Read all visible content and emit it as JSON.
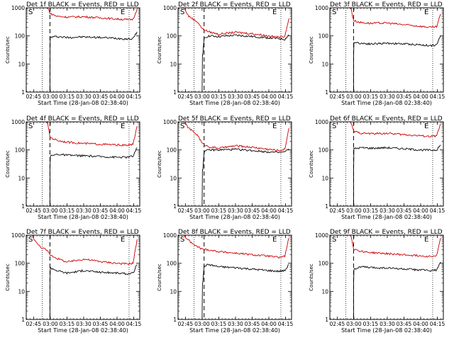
{
  "chart_data": [
    {
      "type": "line",
      "title": "Det 1f BLACK = Events, RED = LLD",
      "series": [
        {
          "name": "Events",
          "color": "#000000",
          "points": [
            [
              2.94,
              0
            ],
            [
              2.995,
              0
            ],
            [
              2.996,
              25
            ],
            [
              3.0,
              90
            ],
            [
              3.1,
              95
            ],
            [
              3.25,
              88
            ],
            [
              3.5,
              92
            ],
            [
              3.75,
              88
            ],
            [
              4.0,
              82
            ],
            [
              4.15,
              78
            ],
            [
              4.24,
              80
            ],
            [
              4.3,
              140
            ]
          ]
        },
        {
          "name": "LLD",
          "color": "#cc0000",
          "points": [
            [
              2.94,
              1000
            ],
            [
              2.96,
              1000
            ],
            [
              2.98,
              800
            ],
            [
              3.0,
              620
            ],
            [
              3.1,
              500
            ],
            [
              3.25,
              470
            ],
            [
              3.5,
              480
            ],
            [
              3.75,
              440
            ],
            [
              4.0,
              400
            ],
            [
              4.15,
              380
            ],
            [
              4.24,
              390
            ],
            [
              4.3,
              900
            ]
          ]
        }
      ]
    },
    {
      "type": "line",
      "title": "Det 2f BLACK = Events, RED = LLD",
      "series": [
        {
          "name": "Events",
          "color": "#000000",
          "points": [
            [
              2.94,
              0
            ],
            [
              3.0,
              0
            ],
            [
              3.01,
              20
            ],
            [
              3.03,
              85
            ],
            [
              3.1,
              100
            ],
            [
              3.25,
              95
            ],
            [
              3.5,
              105
            ],
            [
              3.75,
              95
            ],
            [
              4.0,
              85
            ],
            [
              4.15,
              80
            ],
            [
              4.24,
              75
            ],
            [
              4.3,
              110
            ]
          ]
        },
        {
          "name": "LLD",
          "color": "#cc0000",
          "points": [
            [
              2.72,
              1000
            ],
            [
              2.75,
              800
            ],
            [
              2.8,
              500
            ],
            [
              2.88,
              380
            ],
            [
              2.94,
              300
            ],
            [
              3.0,
              180
            ],
            [
              3.1,
              140
            ],
            [
              3.25,
              115
            ],
            [
              3.5,
              135
            ],
            [
              3.75,
              120
            ],
            [
              4.0,
              100
            ],
            [
              4.15,
              90
            ],
            [
              4.24,
              100
            ],
            [
              4.3,
              420
            ]
          ]
        }
      ]
    },
    {
      "type": "line",
      "title": "Det 3f BLACK = Events, RED = LLD",
      "series": [
        {
          "name": "Events",
          "color": "#000000",
          "points": [
            [
              2.94,
              0
            ],
            [
              2.995,
              0
            ],
            [
              2.996,
              20
            ],
            [
              3.0,
              60
            ],
            [
              3.1,
              55
            ],
            [
              3.25,
              52
            ],
            [
              3.5,
              55
            ],
            [
              3.75,
              52
            ],
            [
              4.0,
              48
            ],
            [
              4.15,
              45
            ],
            [
              4.24,
              48
            ],
            [
              4.3,
              100
            ]
          ]
        },
        {
          "name": "LLD",
          "color": "#cc0000",
          "points": [
            [
              2.94,
              1000
            ],
            [
              2.96,
              900
            ],
            [
              2.98,
              500
            ],
            [
              3.0,
              350
            ],
            [
              3.1,
              300
            ],
            [
              3.25,
              280
            ],
            [
              3.5,
              290
            ],
            [
              3.75,
              250
            ],
            [
              4.0,
              220
            ],
            [
              4.15,
              200
            ],
            [
              4.24,
              210
            ],
            [
              4.3,
              600
            ]
          ]
        }
      ]
    },
    {
      "type": "line",
      "title": "Det 4f BLACK = Events, RED = LLD",
      "series": [
        {
          "name": "Events",
          "color": "#000000",
          "points": [
            [
              2.94,
              0
            ],
            [
              2.995,
              0
            ],
            [
              2.996,
              20
            ],
            [
              3.0,
              60
            ],
            [
              3.1,
              70
            ],
            [
              3.25,
              65
            ],
            [
              3.5,
              62
            ],
            [
              3.75,
              58
            ],
            [
              4.0,
              55
            ],
            [
              4.15,
              55
            ],
            [
              4.24,
              60
            ],
            [
              4.3,
              120
            ]
          ]
        },
        {
          "name": "LLD",
          "color": "#cc0000",
          "points": [
            [
              2.94,
              1000
            ],
            [
              2.96,
              900
            ],
            [
              2.98,
              450
            ],
            [
              3.0,
              280
            ],
            [
              3.1,
              220
            ],
            [
              3.25,
              190
            ],
            [
              3.5,
              170
            ],
            [
              3.75,
              160
            ],
            [
              4.0,
              150
            ],
            [
              4.15,
              145
            ],
            [
              4.24,
              160
            ],
            [
              4.3,
              700
            ]
          ]
        }
      ]
    },
    {
      "type": "line",
      "title": "Det 5f BLACK = Events, RED = LLD",
      "series": [
        {
          "name": "Events",
          "color": "#000000",
          "points": [
            [
              2.94,
              0
            ],
            [
              3.0,
              0
            ],
            [
              3.01,
              20
            ],
            [
              3.03,
              85
            ],
            [
              3.1,
              100
            ],
            [
              3.25,
              100
            ],
            [
              3.5,
              105
            ],
            [
              3.75,
              95
            ],
            [
              4.0,
              85
            ],
            [
              4.15,
              80
            ],
            [
              4.24,
              85
            ],
            [
              4.3,
              110
            ]
          ]
        },
        {
          "name": "LLD",
          "color": "#cc0000",
          "points": [
            [
              2.72,
              1000
            ],
            [
              2.75,
              850
            ],
            [
              2.8,
              600
            ],
            [
              2.88,
              420
            ],
            [
              2.94,
              320
            ],
            [
              3.0,
              170
            ],
            [
              3.1,
              130
            ],
            [
              3.25,
              115
            ],
            [
              3.5,
              140
            ],
            [
              3.75,
              125
            ],
            [
              4.0,
              105
            ],
            [
              4.15,
              95
            ],
            [
              4.24,
              105
            ],
            [
              4.3,
              600
            ]
          ]
        }
      ]
    },
    {
      "type": "line",
      "title": "Det 6f BLACK = Events, RED = LLD",
      "series": [
        {
          "name": "Events",
          "color": "#000000",
          "points": [
            [
              2.94,
              0
            ],
            [
              2.995,
              0
            ],
            [
              2.996,
              20
            ],
            [
              3.0,
              110
            ],
            [
              3.1,
              120
            ],
            [
              3.25,
              115
            ],
            [
              3.5,
              120
            ],
            [
              3.75,
              110
            ],
            [
              4.0,
              100
            ],
            [
              4.15,
              98
            ],
            [
              4.24,
              100
            ],
            [
              4.3,
              150
            ]
          ]
        },
        {
          "name": "LLD",
          "color": "#cc0000",
          "points": [
            [
              2.94,
              1000
            ],
            [
              2.96,
              900
            ],
            [
              2.98,
              600
            ],
            [
              3.0,
              450
            ],
            [
              3.1,
              400
            ],
            [
              3.25,
              380
            ],
            [
              3.5,
              390
            ],
            [
              3.75,
              350
            ],
            [
              4.0,
              320
            ],
            [
              4.15,
              300
            ],
            [
              4.24,
              320
            ],
            [
              4.3,
              850
            ]
          ]
        }
      ]
    },
    {
      "type": "line",
      "title": "Det 7f BLACK = Events, RED = LLD",
      "series": [
        {
          "name": "Events",
          "color": "#000000",
          "points": [
            [
              2.94,
              0
            ],
            [
              2.995,
              0
            ],
            [
              2.996,
              20
            ],
            [
              3.0,
              70
            ],
            [
              3.1,
              55
            ],
            [
              3.25,
              45
            ],
            [
              3.5,
              55
            ],
            [
              3.75,
              48
            ],
            [
              4.0,
              45
            ],
            [
              4.15,
              42
            ],
            [
              4.24,
              45
            ],
            [
              4.3,
              90
            ]
          ]
        },
        {
          "name": "LLD",
          "color": "#cc0000",
          "points": [
            [
              2.72,
              1000
            ],
            [
              2.75,
              800
            ],
            [
              2.8,
              500
            ],
            [
              2.88,
              350
            ],
            [
              2.94,
              300
            ],
            [
              3.0,
              200
            ],
            [
              3.1,
              150
            ],
            [
              3.25,
              110
            ],
            [
              3.5,
              140
            ],
            [
              3.75,
              115
            ],
            [
              4.0,
              100
            ],
            [
              4.15,
              95
            ],
            [
              4.24,
              100
            ],
            [
              4.3,
              700
            ]
          ]
        }
      ]
    },
    {
      "type": "line",
      "title": "Det 8f BLACK = Events, RED = LLD",
      "series": [
        {
          "name": "Events",
          "color": "#000000",
          "points": [
            [
              2.94,
              0
            ],
            [
              3.0,
              0
            ],
            [
              3.01,
              20
            ],
            [
              3.03,
              80
            ],
            [
              3.1,
              90
            ],
            [
              3.25,
              75
            ],
            [
              3.5,
              70
            ],
            [
              3.75,
              62
            ],
            [
              4.0,
              55
            ],
            [
              4.15,
              52
            ],
            [
              4.24,
              55
            ],
            [
              4.3,
              90
            ]
          ]
        },
        {
          "name": "LLD",
          "color": "#cc0000",
          "points": [
            [
              2.72,
              1000
            ],
            [
              2.75,
              850
            ],
            [
              2.8,
              650
            ],
            [
              2.88,
              450
            ],
            [
              2.94,
              380
            ],
            [
              3.0,
              320
            ],
            [
              3.1,
              300
            ],
            [
              3.25,
              260
            ],
            [
              3.5,
              230
            ],
            [
              3.75,
              200
            ],
            [
              4.0,
              180
            ],
            [
              4.15,
              160
            ],
            [
              4.24,
              180
            ],
            [
              4.3,
              800
            ]
          ]
        }
      ]
    },
    {
      "type": "line",
      "title": "Det 9f BLACK = Events, RED = LLD",
      "series": [
        {
          "name": "Events",
          "color": "#000000",
          "points": [
            [
              2.94,
              0
            ],
            [
              2.995,
              0
            ],
            [
              2.996,
              20
            ],
            [
              3.0,
              60
            ],
            [
              3.1,
              75
            ],
            [
              3.25,
              70
            ],
            [
              3.5,
              68
            ],
            [
              3.75,
              62
            ],
            [
              4.0,
              58
            ],
            [
              4.15,
              55
            ],
            [
              4.24,
              58
            ],
            [
              4.3,
              110
            ]
          ]
        },
        {
          "name": "LLD",
          "color": "#cc0000",
          "points": [
            [
              2.94,
              1000
            ],
            [
              2.96,
              900
            ],
            [
              2.98,
              500
            ],
            [
              3.0,
              320
            ],
            [
              3.1,
              270
            ],
            [
              3.25,
              240
            ],
            [
              3.5,
              220
            ],
            [
              3.75,
              200
            ],
            [
              4.0,
              185
            ],
            [
              4.15,
              175
            ],
            [
              4.24,
              185
            ],
            [
              4.3,
              800
            ]
          ]
        }
      ]
    }
  ],
  "shared": {
    "xlabel": "Start Time (28-Jan-08 02:38:40)",
    "ylabel": "Counts/sec",
    "xticks": [
      {
        "v": 2.75,
        "label": "02:45"
      },
      {
        "v": 3.0,
        "label": "03:00"
      },
      {
        "v": 3.25,
        "label": "03:15"
      },
      {
        "v": 3.5,
        "label": "03:30"
      },
      {
        "v": 3.75,
        "label": "03:45"
      },
      {
        "v": 4.0,
        "label": "04:00"
      },
      {
        "v": 4.25,
        "label": "04:15"
      }
    ],
    "xlim": [
      2.64,
      4.34
    ],
    "ylim": [
      1,
      1000
    ],
    "yscale": "log",
    "yticks": [
      {
        "v": 1,
        "label": "1"
      },
      {
        "v": 10,
        "label": "10"
      },
      {
        "v": 100,
        "label": "100"
      },
      {
        "v": 1000,
        "label": "1000"
      }
    ],
    "markers": {
      "start_label": "S",
      "end_label": "E"
    },
    "lines": {
      "dotted_a": 2.88,
      "dotted_b": 4.18,
      "dashed_a": 2.995,
      "dashed_b": 3.03
    }
  }
}
